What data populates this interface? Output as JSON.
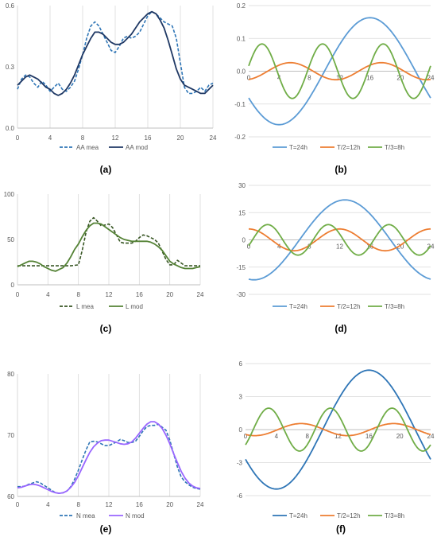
{
  "chart_data": [
    {
      "type": "line",
      "panel_label": "(a)",
      "xlim": [
        0,
        24
      ],
      "ylim": [
        0,
        0.6
      ],
      "xticks": [
        "0",
        "4",
        "8",
        "12",
        "16",
        "20",
        "24"
      ],
      "yticks": [
        "0.0",
        "0.3",
        "0.6"
      ],
      "grid": "vertical",
      "legend_position": "bottom",
      "series": [
        {
          "name": "AA mea",
          "color": "#2E75B6",
          "dash": "dashed",
          "x": [
            0,
            0.5,
            1,
            1.5,
            2,
            2.5,
            3,
            3.5,
            4,
            4.5,
            5,
            5.5,
            6,
            6.5,
            7,
            7.5,
            8,
            8.5,
            9,
            9.5,
            10,
            10.5,
            11,
            11.5,
            12,
            12.5,
            13,
            13.5,
            14,
            14.5,
            15,
            15.5,
            16,
            16.5,
            17,
            17.5,
            18,
            18.5,
            19,
            19.5,
            20,
            20.5,
            21,
            21.5,
            22,
            22.5,
            23,
            23.5,
            24
          ],
          "y": [
            0.19,
            0.24,
            0.26,
            0.25,
            0.22,
            0.2,
            0.23,
            0.21,
            0.18,
            0.2,
            0.22,
            0.19,
            0.18,
            0.2,
            0.23,
            0.29,
            0.36,
            0.44,
            0.5,
            0.52,
            0.5,
            0.46,
            0.42,
            0.38,
            0.37,
            0.4,
            0.44,
            0.45,
            0.44,
            0.45,
            0.47,
            0.51,
            0.55,
            0.57,
            0.56,
            0.54,
            0.52,
            0.51,
            0.5,
            0.44,
            0.32,
            0.2,
            0.17,
            0.17,
            0.18,
            0.2,
            0.18,
            0.21,
            0.22
          ]
        },
        {
          "name": "AA mod",
          "color": "#1F3864",
          "dash": "solid",
          "x": [
            0,
            0.5,
            1,
            1.5,
            2,
            2.5,
            3,
            3.5,
            4,
            4.5,
            5,
            5.5,
            6,
            6.5,
            7,
            7.5,
            8,
            8.5,
            9,
            9.5,
            10,
            10.5,
            11,
            11.5,
            12,
            12.5,
            13,
            13.5,
            14,
            14.5,
            15,
            15.5,
            16,
            16.5,
            17,
            17.5,
            18,
            18.5,
            19,
            19.5,
            20,
            20.5,
            21,
            21.5,
            22,
            22.5,
            23,
            23.5,
            24
          ],
          "y": [
            0.21,
            0.23,
            0.25,
            0.26,
            0.25,
            0.24,
            0.22,
            0.2,
            0.19,
            0.17,
            0.16,
            0.17,
            0.19,
            0.22,
            0.26,
            0.31,
            0.36,
            0.4,
            0.44,
            0.47,
            0.47,
            0.46,
            0.44,
            0.42,
            0.41,
            0.41,
            0.42,
            0.44,
            0.46,
            0.49,
            0.52,
            0.54,
            0.56,
            0.57,
            0.56,
            0.53,
            0.49,
            0.43,
            0.36,
            0.29,
            0.24,
            0.21,
            0.2,
            0.19,
            0.18,
            0.17,
            0.17,
            0.19,
            0.21
          ]
        }
      ]
    },
    {
      "type": "line",
      "panel_label": "(b)",
      "xlim": [
        0,
        24
      ],
      "ylim": [
        -0.2,
        0.2
      ],
      "xticks": [
        "0",
        "4",
        "8",
        "12",
        "16",
        "20",
        "24"
      ],
      "yticks": [
        "-0.2",
        "-0.1",
        "0.0",
        "0.1",
        "0.2"
      ],
      "grid": "horizontal",
      "x_axis_at_zero": true,
      "legend_position": "bottom",
      "series": [
        {
          "name": "T=24h",
          "color": "#5B9BD5",
          "amp": 0.163,
          "period": 24,
          "peak": 16
        },
        {
          "name": "T/2=12h",
          "color": "#ED7D31",
          "amp": 0.026,
          "period": 12,
          "peak": 5.5
        },
        {
          "name": "T/3=8h",
          "color": "#70AD47",
          "amp": 0.083,
          "period": 8,
          "peak": 1.75
        }
      ]
    },
    {
      "type": "line",
      "panel_label": "(c)",
      "xlim": [
        0,
        24
      ],
      "ylim": [
        0,
        100
      ],
      "xticks": [
        "0",
        "4",
        "8",
        "12",
        "16",
        "20",
        "24"
      ],
      "yticks": [
        "0",
        "50",
        "100"
      ],
      "grid": "vertical",
      "legend_position": "bottom",
      "series": [
        {
          "name": "L mea",
          "color": "#375623",
          "dash": "dashed",
          "x": [
            0,
            1,
            2,
            3,
            4,
            5,
            6,
            7,
            8,
            8.5,
            9,
            9.5,
            10,
            10.5,
            11,
            11.5,
            12,
            12.5,
            13,
            13.5,
            14,
            14.5,
            15,
            15.5,
            16,
            16.5,
            17,
            17.5,
            18,
            18.5,
            19,
            19.5,
            20,
            20.5,
            21,
            21.5,
            22,
            23,
            24
          ],
          "y": [
            21,
            21,
            21,
            21,
            21,
            21,
            21,
            21,
            22,
            38,
            58,
            70,
            74,
            70,
            65,
            66,
            67,
            63,
            55,
            47,
            46,
            46,
            46,
            48,
            52,
            55,
            54,
            52,
            50,
            46,
            37,
            28,
            22,
            22,
            27,
            24,
            21,
            21,
            21
          ]
        },
        {
          "name": "L mod",
          "color": "#548235",
          "dash": "solid",
          "x": [
            0,
            0.5,
            1,
            1.5,
            2,
            2.5,
            3,
            3.5,
            4,
            4.5,
            5,
            5.5,
            6,
            6.5,
            7,
            7.5,
            8,
            8.5,
            9,
            9.5,
            10,
            10.5,
            11,
            11.5,
            12,
            12.5,
            13,
            13.5,
            14,
            14.5,
            15,
            15.5,
            16,
            16.5,
            17,
            17.5,
            18,
            18.5,
            19,
            19.5,
            20,
            20.5,
            21,
            21.5,
            22,
            22.5,
            23,
            23.5,
            24
          ],
          "y": [
            20,
            22,
            24,
            26,
            26,
            25,
            23,
            20,
            18,
            16,
            15,
            17,
            19,
            24,
            31,
            39,
            45,
            53,
            60,
            65,
            68,
            68,
            67,
            64,
            61,
            58,
            55,
            52,
            50,
            49,
            48,
            48,
            48,
            48,
            48,
            47,
            45,
            42,
            38,
            32,
            26,
            23,
            21,
            19,
            18,
            18,
            18,
            19,
            20
          ]
        }
      ]
    },
    {
      "type": "line",
      "panel_label": "(d)",
      "xlim": [
        0,
        24
      ],
      "ylim": [
        -30,
        30
      ],
      "xticks": [
        "0",
        "4",
        "8",
        "12",
        "16",
        "20",
        "24"
      ],
      "yticks": [
        "-30",
        "-15",
        "0",
        "15",
        "30"
      ],
      "grid": "horizontal",
      "x_axis_at_zero": true,
      "legend_position": "bottom",
      "series": [
        {
          "name": "T=24h",
          "color": "#5B9BD5",
          "amp": 22,
          "period": 24,
          "peak": 12.7
        },
        {
          "name": "T/2=12h",
          "color": "#ED7D31",
          "amp": 6,
          "period": 12,
          "peak": 12
        },
        {
          "name": "T/3=8h",
          "color": "#70AD47",
          "amp": 8.4,
          "period": 8,
          "peak": 2.5
        }
      ]
    },
    {
      "type": "line",
      "panel_label": "(e)",
      "xlim": [
        0,
        24
      ],
      "ylim": [
        60,
        80
      ],
      "xticks": [
        "0",
        "4",
        "8",
        "12",
        "16",
        "20",
        "24"
      ],
      "yticks": [
        "60",
        "70",
        "80"
      ],
      "grid": "vertical",
      "legend_position": "bottom",
      "series": [
        {
          "name": "N mea",
          "color": "#2E75B6",
          "dash": "dashed",
          "x": [
            0,
            0.5,
            1,
            1.5,
            2,
            2.5,
            3,
            3.5,
            4,
            4.5,
            5,
            5.5,
            6,
            6.5,
            7,
            7.5,
            8,
            8.5,
            9,
            9.5,
            10,
            10.5,
            11,
            11.5,
            12,
            12.5,
            13,
            13.5,
            14,
            14.5,
            15,
            15.5,
            16,
            16.5,
            17,
            17.5,
            18,
            18.5,
            19,
            19.5,
            20,
            20.5,
            21,
            21.5,
            22,
            22.5,
            23,
            23.5,
            24
          ],
          "y": [
            61.6,
            61.6,
            61.7,
            62.0,
            62.2,
            62.4,
            62.2,
            61.8,
            61.4,
            61.0,
            60.6,
            60.5,
            60.6,
            60.9,
            61.6,
            62.8,
            64.3,
            66.0,
            67.6,
            68.9,
            69.0,
            68.9,
            68.6,
            68.3,
            68.3,
            68.6,
            68.9,
            69.3,
            69.1,
            68.8,
            68.8,
            69.0,
            69.8,
            70.7,
            71.4,
            71.6,
            71.6,
            71.8,
            71.3,
            70.8,
            69.2,
            67.0,
            64.8,
            63.2,
            62.4,
            61.9,
            61.5,
            61.3,
            61.2
          ]
        },
        {
          "name": "N mod",
          "color": "#9966FF",
          "dash": "solid",
          "x": [
            0,
            0.5,
            1,
            1.5,
            2,
            2.5,
            3,
            3.5,
            4,
            4.5,
            5,
            5.5,
            6,
            6.5,
            7,
            7.5,
            8,
            8.5,
            9,
            9.5,
            10,
            10.5,
            11,
            11.5,
            12,
            12.5,
            13,
            13.5,
            14,
            14.5,
            15,
            15.5,
            16,
            16.5,
            17,
            17.5,
            18,
            18.5,
            19,
            19.5,
            20,
            20.5,
            21,
            21.5,
            22,
            22.5,
            23,
            23.5,
            24
          ],
          "y": [
            61.4,
            61.5,
            61.7,
            61.9,
            62.0,
            61.9,
            61.7,
            61.4,
            61.1,
            60.8,
            60.6,
            60.5,
            60.6,
            60.9,
            61.5,
            62.3,
            63.4,
            64.7,
            66.0,
            67.2,
            68.1,
            68.7,
            69.1,
            69.2,
            69.2,
            69.0,
            68.8,
            68.6,
            68.5,
            68.6,
            68.9,
            69.5,
            70.3,
            71.1,
            71.8,
            72.2,
            72.2,
            71.8,
            71.1,
            70.0,
            68.6,
            67.0,
            65.5,
            64.1,
            63.0,
            62.2,
            61.7,
            61.4,
            61.3
          ]
        }
      ]
    },
    {
      "type": "line",
      "panel_label": "(f)",
      "xlim": [
        0,
        24
      ],
      "ylim": [
        -6,
        6
      ],
      "xticks": [
        "0",
        "4",
        "8",
        "12",
        "16",
        "20",
        "24"
      ],
      "yticks": [
        "-6",
        "-3",
        "0",
        "3",
        "6"
      ],
      "grid": "horizontal",
      "x_axis_at_zero": true,
      "legend_position": "bottom",
      "series": [
        {
          "name": "T=24h",
          "color": "#2E75B6",
          "amp": 5.4,
          "period": 24,
          "peak": 16
        },
        {
          "name": "T/2=12h",
          "color": "#ED7D31",
          "amp": 0.55,
          "period": 12,
          "peak": 7.2
        },
        {
          "name": "T/3=8h",
          "color": "#70AD47",
          "amp": 1.95,
          "period": 8,
          "peak": 3
        }
      ]
    }
  ]
}
